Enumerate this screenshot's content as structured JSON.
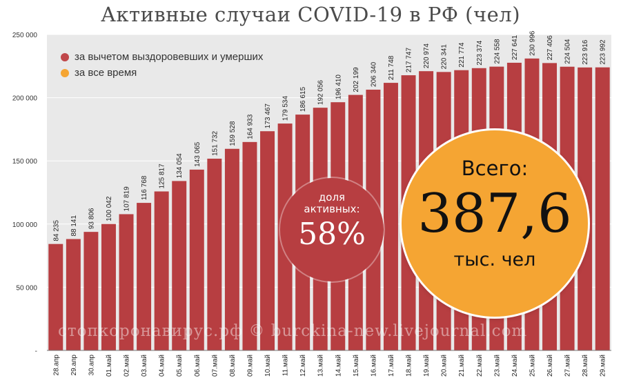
{
  "colors": {
    "bar": "#b73e41",
    "plot_bg": "#e9e9e9",
    "grid": "#ffffff",
    "share_circle": "#b73e41",
    "total_circle": "#f5a533"
  },
  "legend": {
    "active": "за вычетом выздоровевших и умерших",
    "total": "за все время"
  },
  "watermark": "стопкоронавирус.рф © burckina-new.livejournal.com",
  "share_badge": {
    "label_line1": "доля",
    "label_line2": "активных:",
    "value": "58%"
  },
  "total_badge": {
    "label": "Всего:",
    "value": "387,6",
    "unit": "тыс. чел"
  },
  "chart_data": {
    "type": "bar",
    "title": "Активные случаи COVID-19 в РФ (чел)",
    "xlabel": "",
    "ylabel": "",
    "ylim": [
      0,
      250000
    ],
    "yticks": [
      0,
      50000,
      100000,
      150000,
      200000,
      250000
    ],
    "ytick_labels": [
      "-",
      "50 000",
      "100 000",
      "150 000",
      "200 000",
      "250 000"
    ],
    "grid": true,
    "categories": [
      "28.апр",
      "29.апр",
      "30.апр",
      "01.май",
      "02.май",
      "03.май",
      "04.май",
      "05.май",
      "06.май",
      "07.май",
      "08.май",
      "09.май",
      "10.май",
      "11.май",
      "12.май",
      "13.май",
      "14.май",
      "15.май",
      "16.май",
      "17.май",
      "18.май",
      "19.май",
      "20.май",
      "21.май",
      "22.май",
      "23.май",
      "24.май",
      "25.май",
      "26.май",
      "27.май",
      "28.май",
      "29.май"
    ],
    "values": [
      84235,
      88141,
      93806,
      100042,
      107819,
      116768,
      125817,
      134054,
      143065,
      151732,
      159528,
      164933,
      173467,
      179534,
      186615,
      192056,
      196410,
      202199,
      206340,
      211748,
      217747,
      220974,
      220341,
      221774,
      223374,
      224558,
      227641,
      230996,
      227406,
      224504,
      223916,
      223992
    ],
    "value_labels": [
      "84 235",
      "88 141",
      "93 806",
      "100 042",
      "107 819",
      "116 768",
      "125 817",
      "134 054",
      "143 065",
      "151 732",
      "159 528",
      "164 933",
      "173 467",
      "179 534",
      "186 615",
      "192 056",
      "196 410",
      "202 199",
      "206 340",
      "211 748",
      "217 747",
      "220 974",
      "220 341",
      "221 774",
      "223 374",
      "224 558",
      "227 641",
      "230 996",
      "227 406",
      "224 504",
      "223 916",
      "223 992"
    ]
  }
}
